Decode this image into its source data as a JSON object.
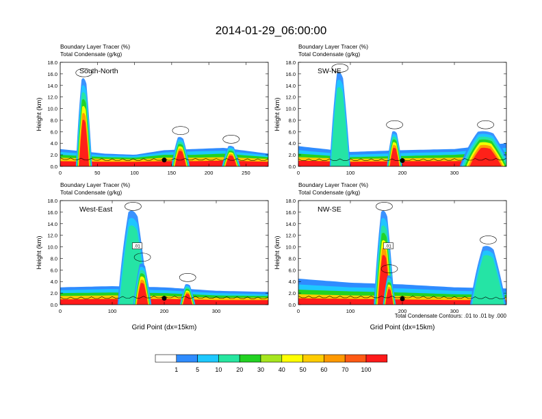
{
  "figure": {
    "title": "2014-01-29_06:00:00",
    "footnote": "Total Condensate Contours: .01 to .01 by .000"
  },
  "colorbar": {
    "colors": [
      "#ffffff",
      "#2f8cff",
      "#1ec8ff",
      "#26e6a0",
      "#22d222",
      "#a6e61e",
      "#ffff00",
      "#ffcc00",
      "#ff9900",
      "#ff5a14",
      "#ff1a1a"
    ],
    "labels": [
      "1",
      "5",
      "10",
      "20",
      "30",
      "40",
      "50",
      "60",
      "70",
      "100"
    ]
  },
  "chart_data": [
    {
      "type": "heatmap",
      "panel": "top-left",
      "label": "South-North",
      "title_lines": [
        "Boundary Layer Tracer   (%)",
        "Total Condensate   (g/kg)"
      ],
      "ylabel": "Height (km)",
      "xlabel": "",
      "xlim": [
        0,
        280
      ],
      "ylim": [
        0,
        18
      ],
      "xticks": [
        0,
        50,
        100,
        150,
        200,
        250
      ],
      "yticks": [
        "0.0",
        "2.0",
        "4.0",
        "6.0",
        "8.0",
        "10.0",
        "12.0",
        "14.0",
        "16.0",
        "18.0"
      ],
      "contour_label": "",
      "surface_top": [
        [
          0,
          1.2
        ],
        [
          70,
          1.0
        ],
        [
          180,
          1.1
        ],
        [
          280,
          1.0
        ]
      ],
      "marker": [
        140,
        1.1
      ],
      "plumes": [
        {
          "x": [
            20,
            42
          ],
          "top": 15,
          "core_top": 8,
          "peak": 32
        },
        {
          "x": [
            150,
            175
          ],
          "top": 5,
          "core_top": 2,
          "peak": 162
        },
        {
          "x": [
            220,
            245
          ],
          "top": 3.5,
          "core_top": 1.5,
          "peak": 230
        }
      ],
      "levels": [
        {
          "color": "#2f8cff",
          "profile": [
            [
              0,
              3.0
            ],
            [
              60,
              2.2
            ],
            [
              100,
              2.0
            ],
            [
              140,
              2.8
            ],
            [
              180,
              3.0
            ],
            [
              220,
              3.2
            ],
            [
              280,
              2.2
            ]
          ]
        },
        {
          "color": "#1ec8ff",
          "profile": [
            [
              0,
              2.5
            ],
            [
              60,
              1.9
            ],
            [
              100,
              1.8
            ],
            [
              140,
              2.4
            ],
            [
              180,
              2.6
            ],
            [
              220,
              2.7
            ],
            [
              280,
              1.9
            ]
          ]
        },
        {
          "color": "#22d222",
          "profile": [
            [
              0,
              2.0
            ],
            [
              60,
              1.6
            ],
            [
              100,
              1.5
            ],
            [
              140,
              2.0
            ],
            [
              180,
              2.0
            ],
            [
              220,
              2.2
            ],
            [
              280,
              1.6
            ]
          ]
        },
        {
          "color": "#ffcc00",
          "profile": [
            [
              0,
              1.5
            ],
            [
              60,
              1.3
            ],
            [
              100,
              1.2
            ],
            [
              140,
              1.5
            ],
            [
              180,
              1.5
            ],
            [
              220,
              1.6
            ],
            [
              280,
              1.3
            ]
          ]
        },
        {
          "color": "#ff1a1a",
          "profile": [
            [
              0,
              0.9
            ],
            [
              60,
              0.8
            ],
            [
              100,
              0.8
            ],
            [
              140,
              0.9
            ],
            [
              180,
              0.9
            ],
            [
              220,
              1.0
            ],
            [
              280,
              0.8
            ]
          ]
        }
      ]
    },
    {
      "type": "heatmap",
      "panel": "top-right",
      "label": "SW-NE",
      "title_lines": [
        "Boundary Layer Tracer   (%)",
        "Total Condensate   (g/kg)"
      ],
      "ylabel": "Height (km)",
      "xlabel": "",
      "xlim": [
        0,
        400
      ],
      "ylim": [
        0,
        18
      ],
      "xticks": [
        0,
        100,
        200,
        300
      ],
      "yticks": [
        "0.0",
        "2.0",
        "4.0",
        "6.0",
        "8.0",
        "10.0",
        "12.0",
        "14.0",
        "16.0",
        "18.0"
      ],
      "contour_label": "",
      "surface_top": [
        [
          0,
          1.0
        ],
        [
          200,
          1.0
        ],
        [
          400,
          1.1
        ]
      ],
      "marker": [
        200,
        1.0
      ],
      "plumes": [
        {
          "x": [
            55,
            95
          ],
          "top": 16,
          "core_top": 0,
          "peak": 80
        },
        {
          "x": [
            170,
            200
          ],
          "top": 6,
          "core_top": 3,
          "peak": 185
        },
        {
          "x": [
            300,
            400
          ],
          "top": 6,
          "core_top": 2.5,
          "peak": 360
        }
      ],
      "levels": [
        {
          "color": "#2f8cff",
          "profile": [
            [
              0,
              3.5
            ],
            [
              100,
              2.5
            ],
            [
              200,
              2.8
            ],
            [
              300,
              3.0
            ],
            [
              400,
              4.0
            ]
          ]
        },
        {
          "color": "#1ec8ff",
          "profile": [
            [
              0,
              2.8
            ],
            [
              100,
              2.0
            ],
            [
              200,
              2.3
            ],
            [
              300,
              2.5
            ],
            [
              400,
              3.2
            ]
          ]
        },
        {
          "color": "#22d222",
          "profile": [
            [
              0,
              2.2
            ],
            [
              100,
              1.6
            ],
            [
              200,
              1.8
            ],
            [
              300,
              2.0
            ],
            [
              400,
              2.5
            ]
          ]
        },
        {
          "color": "#ffcc00",
          "profile": [
            [
              0,
              1.6
            ],
            [
              100,
              1.3
            ],
            [
              200,
              1.4
            ],
            [
              300,
              1.5
            ],
            [
              400,
              1.8
            ]
          ]
        },
        {
          "color": "#ff1a1a",
          "profile": [
            [
              0,
              1.0
            ],
            [
              100,
              0.8
            ],
            [
              200,
              0.9
            ],
            [
              300,
              0.9
            ],
            [
              400,
              1.1
            ]
          ]
        }
      ]
    },
    {
      "type": "heatmap",
      "panel": "bottom-left",
      "label": "West-East",
      "title_lines": [
        "Boundary Layer Tracer   (%)",
        "Total Condensate   (g/kg)"
      ],
      "ylabel": "Height (km)",
      "xlabel": "Grid Point (dx=15km)",
      "xlim": [
        0,
        400
      ],
      "ylim": [
        0,
        18
      ],
      "xticks": [
        0,
        100,
        200,
        300
      ],
      "yticks": [
        "0.0",
        "2.0",
        "4.0",
        "6.0",
        "8.0",
        "10.0",
        "12.0",
        "14.0",
        "16.0",
        "18.0"
      ],
      "contour_label": ".01",
      "surface_top": [
        [
          0,
          1.0
        ],
        [
          200,
          1.2
        ],
        [
          400,
          1.0
        ]
      ],
      "marker": [
        200,
        1.1
      ],
      "plumes": [
        {
          "x": [
            110,
            170
          ],
          "top": 16,
          "core_top": 0,
          "peak": 140
        },
        {
          "x": [
            140,
            175
          ],
          "top": 7,
          "core_top": 4,
          "peak": 158
        },
        {
          "x": [
            230,
            260
          ],
          "top": 3.5,
          "core_top": 1.5,
          "peak": 245
        }
      ],
      "levels": [
        {
          "color": "#2f8cff",
          "profile": [
            [
              0,
              3.0
            ],
            [
              100,
              3.2
            ],
            [
              200,
              3.0
            ],
            [
              300,
              2.4
            ],
            [
              400,
              2.2
            ]
          ]
        },
        {
          "color": "#1ec8ff",
          "profile": [
            [
              0,
              2.5
            ],
            [
              100,
              2.7
            ],
            [
              200,
              2.5
            ],
            [
              300,
              2.0
            ],
            [
              400,
              1.8
            ]
          ]
        },
        {
          "color": "#22d222",
          "profile": [
            [
              0,
              2.0
            ],
            [
              100,
              2.1
            ],
            [
              200,
              2.0
            ],
            [
              300,
              1.6
            ],
            [
              400,
              1.5
            ]
          ]
        },
        {
          "color": "#ffcc00",
          "profile": [
            [
              0,
              1.5
            ],
            [
              100,
              1.6
            ],
            [
              200,
              1.5
            ],
            [
              300,
              1.2
            ],
            [
              400,
              1.2
            ]
          ]
        },
        {
          "color": "#ff1a1a",
          "profile": [
            [
              0,
              0.9
            ],
            [
              100,
              1.0
            ],
            [
              200,
              1.0
            ],
            [
              300,
              0.8
            ],
            [
              400,
              0.8
            ]
          ]
        }
      ]
    },
    {
      "type": "heatmap",
      "panel": "bottom-right",
      "label": "NW-SE",
      "title_lines": [
        "Boundary Layer Tracer   (%)",
        "Total Condensate   (g/kg)"
      ],
      "ylabel": "Height (km)",
      "xlabel": "Grid Point (dx=15km)",
      "xlim": [
        0,
        400
      ],
      "ylim": [
        0,
        18
      ],
      "xticks": [
        0,
        100,
        200,
        300
      ],
      "yticks": [
        "0.0",
        "2.0",
        "4.0",
        "6.0",
        "8.0",
        "10.0",
        "12.0",
        "14.0",
        "16.0",
        "18.0"
      ],
      "contour_label": ".01",
      "surface_top": [
        [
          0,
          1.2
        ],
        [
          200,
          1.2
        ],
        [
          400,
          1.0
        ]
      ],
      "marker": [
        200,
        1.0
      ],
      "plumes": [
        {
          "x": [
            145,
            185
          ],
          "top": 16,
          "core_top": 13,
          "peak": 165
        },
        {
          "x": [
            160,
            185
          ],
          "top": 5,
          "core_top": 2,
          "peak": 175
        },
        {
          "x": [
            330,
            400
          ],
          "top": 10,
          "core_top": 0,
          "peak": 365
        }
      ],
      "levels": [
        {
          "color": "#2f8cff",
          "profile": [
            [
              0,
              4.5
            ],
            [
              100,
              3.8
            ],
            [
              200,
              3.5
            ],
            [
              300,
              3.0
            ],
            [
              400,
              2.8
            ]
          ]
        },
        {
          "color": "#1ec8ff",
          "profile": [
            [
              0,
              3.5
            ],
            [
              100,
              3.0
            ],
            [
              200,
              2.8
            ],
            [
              300,
              2.4
            ],
            [
              400,
              2.2
            ]
          ]
        },
        {
          "color": "#22d222",
          "profile": [
            [
              0,
              2.6
            ],
            [
              100,
              2.3
            ],
            [
              200,
              2.1
            ],
            [
              300,
              1.8
            ],
            [
              400,
              1.7
            ]
          ]
        },
        {
          "color": "#ffcc00",
          "profile": [
            [
              0,
              1.8
            ],
            [
              100,
              1.6
            ],
            [
              200,
              1.5
            ],
            [
              300,
              1.3
            ],
            [
              400,
              1.3
            ]
          ]
        },
        {
          "color": "#ff1a1a",
          "profile": [
            [
              0,
              1.1
            ],
            [
              100,
              1.0
            ],
            [
              200,
              0.9
            ],
            [
              300,
              0.8
            ],
            [
              400,
              0.8
            ]
          ]
        }
      ]
    }
  ]
}
